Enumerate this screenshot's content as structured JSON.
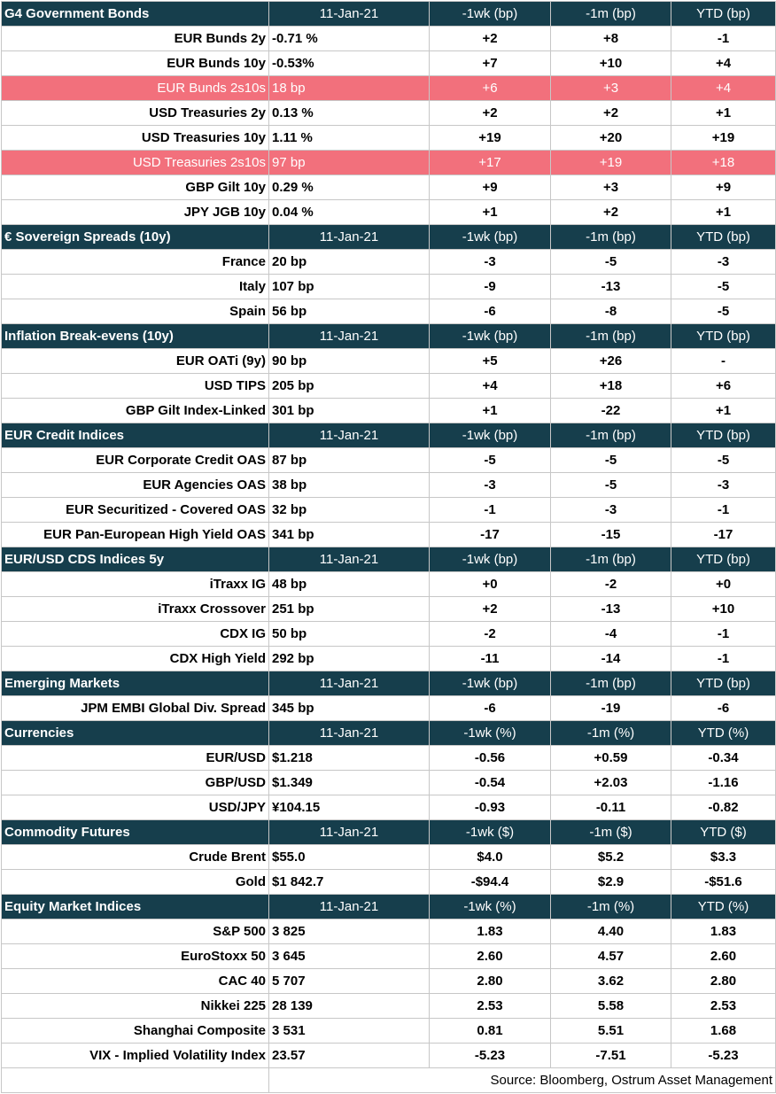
{
  "source": "Source: Bloomberg, Ostrum Asset Management",
  "sections": [
    {
      "title": "G4 Government Bonds",
      "cols": [
        "11-Jan-21",
        "-1wk (bp)",
        "-1m (bp)",
        "YTD (bp)"
      ],
      "rows": [
        {
          "label": "EUR Bunds 2y",
          "v": [
            "-0.71 %",
            "+2",
            "+8",
            "-1"
          ]
        },
        {
          "label": "EUR Bunds 10y",
          "v": [
            "-0.53%",
            "+7",
            "+10",
            "+4"
          ]
        },
        {
          "label": "EUR Bunds 2s10s",
          "v": [
            "18 bp",
            "+6",
            "+3",
            "+4"
          ],
          "hl": true
        },
        {
          "label": "USD Treasuries 2y",
          "v": [
            "0.13 %",
            "+2",
            "+2",
            "+1"
          ]
        },
        {
          "label": "USD Treasuries 10y",
          "v": [
            "1.11 %",
            "+19",
            "+20",
            "+19"
          ]
        },
        {
          "label": "USD Treasuries 2s10s",
          "v": [
            "97 bp",
            "+17",
            "+19",
            "+18"
          ],
          "hl": true
        },
        {
          "label": "GBP Gilt 10y",
          "v": [
            "0.29 %",
            "+9",
            "+3",
            "+9"
          ]
        },
        {
          "label": "JPY JGB  10y",
          "v": [
            "0.04 %",
            "+1",
            "+2",
            "+1"
          ]
        }
      ]
    },
    {
      "title": "€ Sovereign Spreads (10y)",
      "cols": [
        "11-Jan-21",
        "-1wk (bp)",
        "-1m (bp)",
        "YTD (bp)"
      ],
      "rows": [
        {
          "label": "France",
          "v": [
            "20 bp",
            "-3",
            "-5",
            "-3"
          ]
        },
        {
          "label": "Italy",
          "v": [
            "107 bp",
            "-9",
            "-13",
            "-5"
          ]
        },
        {
          "label": "Spain",
          "v": [
            "56 bp",
            "-6",
            "-8",
            "-5"
          ]
        }
      ]
    },
    {
      "title": " Inflation Break-evens (10y)",
      "cols": [
        "11-Jan-21",
        "-1wk (bp)",
        "-1m (bp)",
        "YTD (bp)"
      ],
      "rows": [
        {
          "label": "EUR OATi (9y)",
          "v": [
            "90 bp",
            "+5",
            "+26",
            "-"
          ]
        },
        {
          "label": "USD TIPS",
          "v": [
            "205 bp",
            "+4",
            "+18",
            "+6"
          ]
        },
        {
          "label": "GBP Gilt Index-Linked",
          "v": [
            "301 bp",
            "+1",
            "-22",
            "+1"
          ]
        }
      ]
    },
    {
      "title": "EUR Credit Indices",
      "cols": [
        "11-Jan-21",
        "-1wk (bp)",
        "-1m (bp)",
        "YTD (bp)"
      ],
      "rows": [
        {
          "label": "EUR Corporate Credit OAS",
          "v": [
            "87 bp",
            "-5",
            "-5",
            "-5"
          ]
        },
        {
          "label": "EUR Agencies OAS",
          "v": [
            "38 bp",
            "-3",
            "-5",
            "-3"
          ]
        },
        {
          "label": "EUR Securitized - Covered OAS",
          "v": [
            "32 bp",
            "-1",
            "-3",
            "-1"
          ]
        },
        {
          "label": "EUR Pan-European High Yield OAS",
          "v": [
            "341 bp",
            "-17",
            "-15",
            "-17"
          ]
        }
      ]
    },
    {
      "title": "EUR/USD CDS Indices 5y",
      "cols": [
        "11-Jan-21",
        "-1wk (bp)",
        "-1m (bp)",
        "YTD (bp)"
      ],
      "rows": [
        {
          "label": "iTraxx IG",
          "v": [
            "48 bp",
            "+0",
            "-2",
            "+0"
          ]
        },
        {
          "label": "iTraxx Crossover",
          "v": [
            "251 bp",
            "+2",
            "-13",
            "+10"
          ]
        },
        {
          "label": "CDX IG",
          "v": [
            "50 bp",
            "-2",
            "-4",
            "-1"
          ]
        },
        {
          "label": "CDX High Yield",
          "v": [
            "292 bp",
            "-11",
            "-14",
            "-1"
          ]
        }
      ]
    },
    {
      "title": "Emerging Markets",
      "cols": [
        "11-Jan-21",
        "-1wk (bp)",
        "-1m (bp)",
        "YTD (bp)"
      ],
      "rows": [
        {
          "label": "JPM EMBI Global Div. Spread",
          "v": [
            "345 bp",
            "-6",
            "-19",
            "-6"
          ]
        }
      ]
    },
    {
      "title": "Currencies",
      "cols": [
        "11-Jan-21",
        "-1wk (%)",
        "-1m (%)",
        "YTD (%)"
      ],
      "rows": [
        {
          "label": "EUR/USD",
          "v": [
            "$1.218",
            "-0.56",
            "+0.59",
            "-0.34"
          ]
        },
        {
          "label": "GBP/USD",
          "v": [
            "$1.349",
            "-0.54",
            "+2.03",
            "-1.16"
          ]
        },
        {
          "label": "USD/JPY",
          "v": [
            "¥104.15",
            "-0.93",
            "-0.11",
            "-0.82"
          ]
        }
      ]
    },
    {
      "title": "Commodity Futures",
      "cols": [
        "11-Jan-21",
        "-1wk ($)",
        "-1m ($)",
        "YTD ($)"
      ],
      "rows": [
        {
          "label": "Crude Brent",
          "v": [
            "$55.0",
            "$4.0",
            "$5.2",
            "$3.3"
          ]
        },
        {
          "label": "Gold",
          "v": [
            "$1 842.7",
            "-$94.4",
            "$2.9",
            "-$51.6"
          ]
        }
      ]
    },
    {
      "title": "Equity Market Indices",
      "cols": [
        "11-Jan-21",
        "-1wk (%)",
        "-1m (%)",
        "YTD (%)"
      ],
      "rows": [
        {
          "label": "S&P 500",
          "v": [
            "3 825",
            "1.83",
            "4.40",
            "1.83"
          ]
        },
        {
          "label": "EuroStoxx 50",
          "v": [
            "3 645",
            "2.60",
            "4.57",
            "2.60"
          ]
        },
        {
          "label": "CAC 40",
          "v": [
            "5 707",
            "2.80",
            "3.62",
            "2.80"
          ]
        },
        {
          "label": "Nikkei 225",
          "v": [
            "28 139",
            "2.53",
            "5.58",
            "2.53"
          ]
        },
        {
          "label": "Shanghai Composite",
          "v": [
            "3 531",
            "0.81",
            "5.51",
            "1.68"
          ]
        },
        {
          "label": "VIX - Implied Volatility Index",
          "v": [
            "23.57",
            "-5.23",
            "-7.51",
            "-5.23"
          ]
        }
      ]
    }
  ]
}
